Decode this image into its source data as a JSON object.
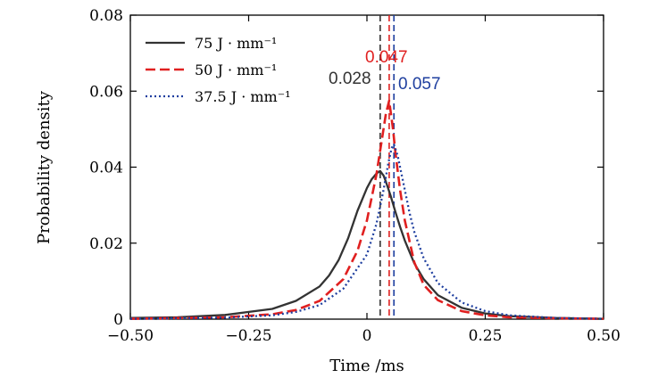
{
  "chart_data": {
    "type": "line",
    "xlabel": "Time /ms",
    "ylabel": "Probability density",
    "xlim": [
      -0.5,
      0.5
    ],
    "ylim": [
      0,
      0.08
    ],
    "xticks": [
      -0.5,
      -0.25,
      0,
      0.25,
      0.5
    ],
    "xtick_labels": [
      "−0.50",
      "−0.25",
      "0",
      "0.25",
      "0.50"
    ],
    "yticks": [
      0,
      0.02,
      0.04,
      0.06,
      0.08
    ],
    "ytick_labels": [
      "0",
      "0.02",
      "0.04",
      "0.06",
      "0.08"
    ],
    "legend_position": "top-left",
    "grid": false,
    "series": [
      {
        "name": "75 J · mm⁻¹",
        "color": "#333333",
        "dash": "solid",
        "x": [
          -0.5,
          -0.4,
          -0.3,
          -0.2,
          -0.15,
          -0.1,
          -0.08,
          -0.06,
          -0.04,
          -0.02,
          0.0,
          0.01,
          0.02,
          0.028,
          0.035,
          0.04,
          0.05,
          0.06,
          0.07,
          0.08,
          0.1,
          0.12,
          0.15,
          0.2,
          0.25,
          0.3,
          0.4,
          0.5
        ],
        "y": [
          0.0003,
          0.0005,
          0.0011,
          0.0027,
          0.0048,
          0.0086,
          0.0115,
          0.0155,
          0.0212,
          0.0285,
          0.0345,
          0.0368,
          0.0383,
          0.039,
          0.0378,
          0.0362,
          0.0325,
          0.0283,
          0.0243,
          0.0207,
          0.0147,
          0.0105,
          0.0063,
          0.003,
          0.0015,
          0.0008,
          0.0003,
          0.0001
        ]
      },
      {
        "name": "50 J · mm⁻¹",
        "color": "#e02020",
        "dash": "dashed",
        "x": [
          -0.5,
          -0.3,
          -0.2,
          -0.15,
          -0.1,
          -0.05,
          -0.02,
          0.0,
          0.02,
          0.03,
          0.04,
          0.047,
          0.055,
          0.06,
          0.07,
          0.08,
          0.1,
          0.12,
          0.15,
          0.2,
          0.25,
          0.3,
          0.4,
          0.5
        ],
        "y": [
          0.0001,
          0.0005,
          0.0013,
          0.0024,
          0.0048,
          0.0105,
          0.018,
          0.026,
          0.038,
          0.046,
          0.054,
          0.0575,
          0.05,
          0.044,
          0.034,
          0.026,
          0.015,
          0.009,
          0.005,
          0.0021,
          0.001,
          0.0005,
          0.0002,
          0.0001
        ]
      },
      {
        "name": "37.5 J · mm⁻¹",
        "color": "#1f3f9f",
        "dash": "dotted",
        "x": [
          -0.5,
          -0.3,
          -0.2,
          -0.15,
          -0.1,
          -0.05,
          0.0,
          0.02,
          0.035,
          0.045,
          0.052,
          0.057,
          0.065,
          0.075,
          0.09,
          0.1,
          0.12,
          0.15,
          0.2,
          0.25,
          0.3,
          0.4,
          0.5
        ],
        "y": [
          0.0001,
          0.0004,
          0.001,
          0.0019,
          0.0037,
          0.008,
          0.017,
          0.025,
          0.034,
          0.041,
          0.045,
          0.046,
          0.043,
          0.037,
          0.028,
          0.023,
          0.016,
          0.0095,
          0.0044,
          0.0021,
          0.001,
          0.0003,
          0.0001
        ]
      }
    ],
    "vlines": [
      {
        "x": 0.028,
        "color": "#333333",
        "label": "0.028"
      },
      {
        "x": 0.047,
        "color": "#e02020",
        "label": "0.047"
      },
      {
        "x": 0.057,
        "color": "#1f3f9f",
        "label": "0.057"
      }
    ]
  }
}
